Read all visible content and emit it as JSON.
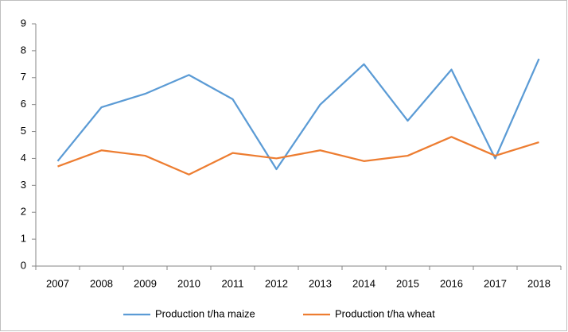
{
  "chart_data": {
    "type": "line",
    "categories": [
      "2007",
      "2008",
      "2009",
      "2010",
      "2011",
      "2012",
      "2013",
      "2014",
      "2015",
      "2016",
      "2017",
      "2018"
    ],
    "series": [
      {
        "name": "Production t/ha maize",
        "color": "#5b9bd5",
        "values": [
          3.9,
          5.9,
          6.4,
          7.1,
          6.2,
          3.6,
          6.0,
          7.5,
          5.4,
          7.3,
          4.0,
          7.7
        ]
      },
      {
        "name": "Production t/ha wheat",
        "color": "#ed7d31",
        "values": [
          3.7,
          4.3,
          4.1,
          3.4,
          4.2,
          4.0,
          4.3,
          3.9,
          4.1,
          4.8,
          4.1,
          4.6
        ]
      }
    ],
    "ylim": [
      0,
      9
    ],
    "yticks": [
      0,
      1,
      2,
      3,
      4,
      5,
      6,
      7,
      8,
      9
    ],
    "grid": false,
    "legend": "bottom"
  }
}
